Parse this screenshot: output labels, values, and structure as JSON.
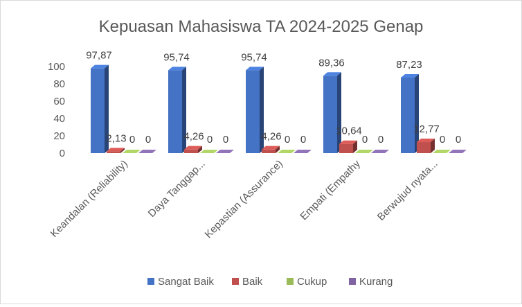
{
  "chart_data": {
    "type": "bar",
    "title": "Kepuasan Mahasiswa TA 2024-2025 Genap",
    "categories": [
      "Keandalan (Reliability)",
      "Daya Tanggap...",
      "Kepastian (Assurance)",
      "Empati (Empathy",
      "Berwujud nyata..."
    ],
    "series": [
      {
        "name": "Sangat Baik",
        "color": "#4472c4",
        "values": [
          97.87,
          95.74,
          95.74,
          89.36,
          87.23
        ],
        "labels": [
          "97,87",
          "95,74",
          "95,74",
          "89,36",
          "87,23"
        ]
      },
      {
        "name": "Baik",
        "color": "#c0504d",
        "values": [
          2.13,
          4.26,
          4.26,
          10.64,
          12.77
        ],
        "labels": [
          "2,13",
          "4,26",
          "4,26",
          "10,64",
          "12,77"
        ]
      },
      {
        "name": "Cukup",
        "color": "#9bbb59",
        "values": [
          0,
          0,
          0,
          0,
          0
        ],
        "labels": [
          "0",
          "0",
          "0",
          "0",
          "0"
        ]
      },
      {
        "name": "Kurang",
        "color": "#8064a2",
        "values": [
          0,
          0,
          0,
          0,
          0
        ],
        "labels": [
          "0",
          "0",
          "0",
          "0",
          "0"
        ]
      }
    ],
    "yticks": [
      "0",
      "20",
      "40",
      "60",
      "80",
      "100"
    ],
    "ylim": [
      0,
      100
    ],
    "grid": false,
    "legend_position": "bottom",
    "style": "3d-clustered-bar"
  }
}
